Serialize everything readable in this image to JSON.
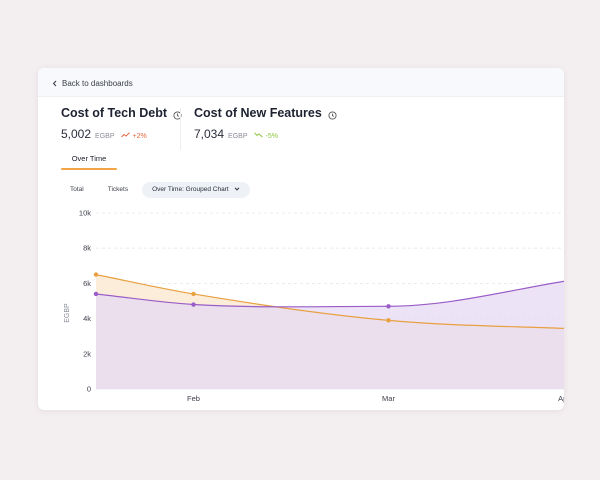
{
  "nav": {
    "back_label": "Back to dashboards"
  },
  "metrics": [
    {
      "title": "Cost of Tech Debt",
      "value": "5,002",
      "unit": "EGBP",
      "trend_label": "+2%",
      "trend_direction": "up"
    },
    {
      "title": "Cost of New Features",
      "value": "7,034",
      "unit": "EGBP",
      "trend_label": "-5%",
      "trend_direction": "down"
    }
  ],
  "tabs": [
    {
      "label": "Over Time",
      "active": true
    }
  ],
  "segments": [
    {
      "label": "Total",
      "active": false
    },
    {
      "label": "Tickets",
      "active": false
    },
    {
      "label": "Over Time: Grouped Chart",
      "active": true,
      "has_dropdown": true
    }
  ],
  "colors": {
    "tech_debt": "#e8a040",
    "new_features": "#9a5cc8",
    "tech_debt_fill": "#fbead3",
    "new_features_fill": "#e6daf3",
    "tab_accent": "#f2a545",
    "trend_up": "#e2673e",
    "trend_down": "#8cc43c"
  },
  "chart_data": {
    "type": "area",
    "ylabel": "EGBP",
    "ylim": [
      0,
      10000
    ],
    "yticks": [
      0,
      2000,
      4000,
      6000,
      8000,
      10000
    ],
    "ytick_labels": [
      "0",
      "2k",
      "4k",
      "6k",
      "8k",
      "10k"
    ],
    "x": [
      1,
      2,
      4,
      6
    ],
    "xticks": [
      {
        "x": 2,
        "label": "Feb"
      },
      {
        "x": 4,
        "label": "Mar"
      },
      {
        "x": 5.8,
        "label": "Apr"
      }
    ],
    "xlim": [
      1,
      5.8
    ],
    "series": [
      {
        "name": "Cost of Tech Debt",
        "values": [
          6500,
          5400,
          3900,
          3400
        ]
      },
      {
        "name": "Cost of New Features",
        "values": [
          5400,
          4800,
          4700,
          6300
        ]
      }
    ]
  }
}
